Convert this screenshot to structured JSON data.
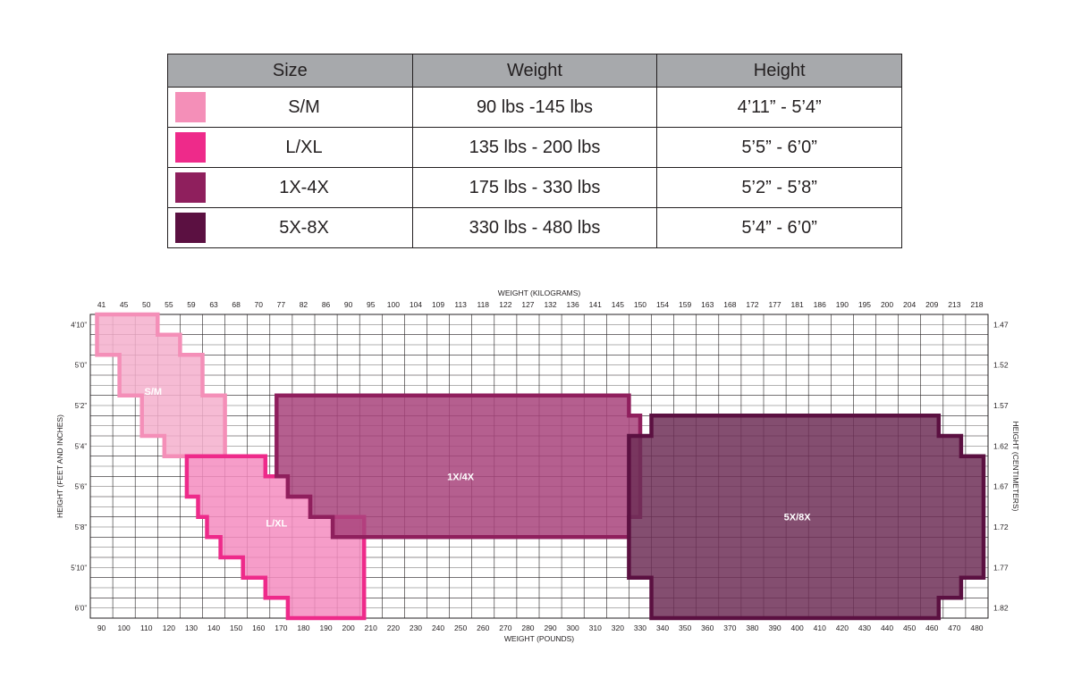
{
  "size_table": {
    "headers": [
      "Size",
      "Weight",
      "Height"
    ],
    "rows": [
      {
        "size": "S/M",
        "weight": "90 lbs -145 lbs",
        "height": "4’11” -  5’4”",
        "color": "#f48fb8"
      },
      {
        "size": "L/XL",
        "weight": "135 lbs - 200 lbs",
        "height": "5’5” - 6’0”",
        "color": "#ee2a8a"
      },
      {
        "size": "1X-4X",
        "weight": "175 lbs - 330 lbs",
        "height": "5’2” - 5’8”",
        "color": "#8f1f5d"
      },
      {
        "size": "5X-8X",
        "weight": "330 lbs - 480 lbs",
        "height": "5’4” - 6’0”",
        "color": "#5b1041"
      }
    ]
  },
  "chart_data": {
    "type": "heatmap",
    "xlabel_bottom": "WEIGHT (POUNDS)",
    "xlabel_top": "WEIGHT (KILOGRAMS)",
    "ylabel_left": "HEIGHT (FEET AND INCHES)",
    "ylabel_right": "HEIGHT (CENTIMETERS)",
    "x_ticks_lbs": [
      90,
      100,
      110,
      120,
      130,
      140,
      150,
      160,
      170,
      180,
      190,
      200,
      210,
      220,
      230,
      240,
      250,
      260,
      270,
      280,
      290,
      300,
      310,
      320,
      330,
      340,
      350,
      360,
      370,
      380,
      390,
      400,
      410,
      420,
      430,
      440,
      450,
      460,
      470,
      480
    ],
    "x_ticks_kg": [
      "41",
      "45",
      "50",
      "55",
      "59",
      "63",
      "68",
      "70",
      "77",
      "82",
      "86",
      "90",
      "95",
      "100",
      "104",
      "109",
      "113",
      "118",
      "122",
      "127",
      "132",
      "136",
      "141",
      "145",
      "150",
      "154",
      "159",
      "163",
      "168",
      "172",
      "177",
      "181",
      "186",
      "190",
      "195",
      "200",
      "204",
      "209",
      "213",
      "218"
    ],
    "y_ticks_ft": [
      {
        "label": "4’10”",
        "inches": 58
      },
      {
        "label": "5’0”",
        "inches": 60
      },
      {
        "label": "5’2”",
        "inches": 62
      },
      {
        "label": "5’4”",
        "inches": 64
      },
      {
        "label": "5’6”",
        "inches": 66
      },
      {
        "label": "5’8”",
        "inches": 68
      },
      {
        "label": "5’10”",
        "inches": 70
      },
      {
        "label": "6’0”",
        "inches": 72
      }
    ],
    "y_ticks_cm": [
      {
        "label": "1.47",
        "inches": 58
      },
      {
        "label": "1.52",
        "inches": 60
      },
      {
        "label": "1.57",
        "inches": 62
      },
      {
        "label": "1.62",
        "inches": 64
      },
      {
        "label": "1.67",
        "inches": 66
      },
      {
        "label": "1.72",
        "inches": 68
      },
      {
        "label": "1.77",
        "inches": 70
      },
      {
        "label": "1.82",
        "inches": 72
      }
    ],
    "grid": true,
    "regions": [
      {
        "name": "S/M",
        "fill": "#f4afcd",
        "stroke": "#f48fb8",
        "label_pos": {
          "lbs": 113,
          "inches": 61.3
        },
        "steps": [
          [
            88,
            58,
            115
          ],
          [
            88,
            59,
            125
          ],
          [
            98,
            60,
            135
          ],
          [
            108,
            62,
            145
          ],
          [
            118,
            64,
            145
          ]
        ]
      },
      {
        "name": "L/XL",
        "fill": "#f48cc0",
        "stroke": "#ee2a8a",
        "label_pos": {
          "lbs": 168,
          "inches": 67.8
        },
        "steps": [
          [
            128,
            65,
            163
          ],
          [
            128,
            66,
            173
          ],
          [
            128,
            66.5,
            173
          ],
          [
            133,
            67,
            183
          ],
          [
            137,
            68,
            207
          ],
          [
            143,
            69,
            207
          ],
          [
            153,
            70,
            207
          ],
          [
            163,
            71,
            207
          ],
          [
            173,
            72,
            207
          ]
        ]
      },
      {
        "name": "1X/4X",
        "fill": "#a8437b",
        "stroke": "#8f1f5d",
        "label_pos": {
          "lbs": 250,
          "inches": 65.5
        },
        "steps": [
          [
            168,
            62,
            325
          ],
          [
            168,
            63,
            330
          ],
          [
            168,
            65,
            330
          ],
          [
            173,
            66,
            330
          ],
          [
            183,
            67,
            330
          ],
          [
            193,
            68,
            325
          ]
        ]
      },
      {
        "name": "5X/8X",
        "fill": "#6f2f57",
        "stroke": "#5b1041",
        "label_pos": {
          "lbs": 400,
          "inches": 67.5
        },
        "steps": [
          [
            335,
            63,
            463
          ],
          [
            325,
            64,
            473
          ],
          [
            325,
            65,
            483
          ],
          [
            325,
            66,
            483
          ],
          [
            325,
            67,
            483
          ],
          [
            325,
            68,
            483
          ],
          [
            325,
            69,
            483
          ],
          [
            325,
            70,
            483
          ],
          [
            335,
            71,
            473
          ],
          [
            335,
            72,
            463
          ]
        ]
      }
    ]
  }
}
